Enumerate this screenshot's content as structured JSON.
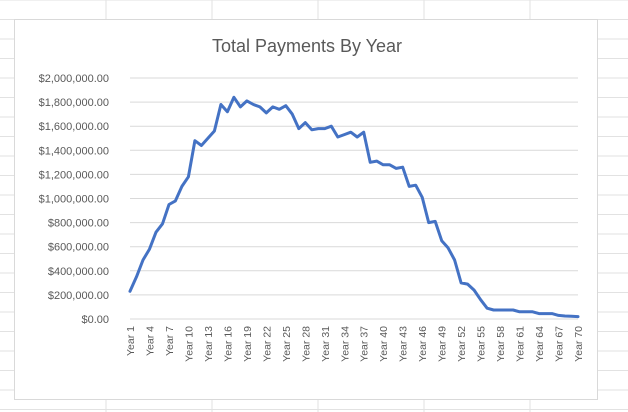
{
  "chart_data": {
    "type": "line",
    "title": "Total Payments By Year",
    "xlabel": "",
    "ylabel": "",
    "ylim": [
      0,
      2000000
    ],
    "y_ticks": [
      0,
      200000,
      400000,
      600000,
      800000,
      1000000,
      1200000,
      1400000,
      1600000,
      1800000,
      2000000
    ],
    "y_tick_labels": [
      "$0.00",
      "$200,000.00",
      "$400,000.00",
      "$600,000.00",
      "$800,000.00",
      "$1,000,000.00",
      "$1,200,000.00",
      "$1,400,000.00",
      "$1,600,000.00",
      "$1,800,000.00",
      "$2,000,000.00"
    ],
    "grid": true,
    "legend": "none",
    "x_tick_labels": [
      "Year 1",
      "Year 4",
      "Year 7",
      "Year 10",
      "Year 13",
      "Year 16",
      "Year 19",
      "Year 22",
      "Year 25",
      "Year 28",
      "Year 31",
      "Year 34",
      "Year 37",
      "Year 40",
      "Year 43",
      "Year 46",
      "Year 49",
      "Year 52",
      "Year 55",
      "Year 58",
      "Year 61",
      "Year 64",
      "Year 67",
      "Year 70"
    ],
    "categories": [
      "Year 1",
      "Year 2",
      "Year 3",
      "Year 4",
      "Year 5",
      "Year 6",
      "Year 7",
      "Year 8",
      "Year 9",
      "Year 10",
      "Year 11",
      "Year 12",
      "Year 13",
      "Year 14",
      "Year 15",
      "Year 16",
      "Year 17",
      "Year 18",
      "Year 19",
      "Year 20",
      "Year 21",
      "Year 22",
      "Year 23",
      "Year 24",
      "Year 25",
      "Year 26",
      "Year 27",
      "Year 28",
      "Year 29",
      "Year 30",
      "Year 31",
      "Year 32",
      "Year 33",
      "Year 34",
      "Year 35",
      "Year 36",
      "Year 37",
      "Year 38",
      "Year 39",
      "Year 40",
      "Year 41",
      "Year 42",
      "Year 43",
      "Year 44",
      "Year 45",
      "Year 46",
      "Year 47",
      "Year 48",
      "Year 49",
      "Year 50",
      "Year 51",
      "Year 52",
      "Year 53",
      "Year 54",
      "Year 55",
      "Year 56",
      "Year 57",
      "Year 58",
      "Year 59",
      "Year 60",
      "Year 61",
      "Year 62",
      "Year 63",
      "Year 64",
      "Year 65",
      "Year 66",
      "Year 67",
      "Year 68",
      "Year 69",
      "Year 70"
    ],
    "series": [
      {
        "color": "#4472c4",
        "values": [
          230000,
          350000,
          490000,
          580000,
          720000,
          790000,
          950000,
          980000,
          1100000,
          1180000,
          1480000,
          1440000,
          1500000,
          1560000,
          1780000,
          1720000,
          1840000,
          1760000,
          1810000,
          1780000,
          1760000,
          1710000,
          1760000,
          1740000,
          1770000,
          1700000,
          1580000,
          1630000,
          1570000,
          1580000,
          1580000,
          1600000,
          1510000,
          1530000,
          1550000,
          1510000,
          1550000,
          1300000,
          1310000,
          1280000,
          1280000,
          1250000,
          1260000,
          1100000,
          1110000,
          1010000,
          800000,
          810000,
          650000,
          590000,
          490000,
          300000,
          290000,
          240000,
          160000,
          90000,
          75000,
          75000,
          75000,
          75000,
          60000,
          60000,
          60000,
          45000,
          45000,
          45000,
          30000,
          25000,
          22000,
          20000
        ]
      }
    ]
  }
}
